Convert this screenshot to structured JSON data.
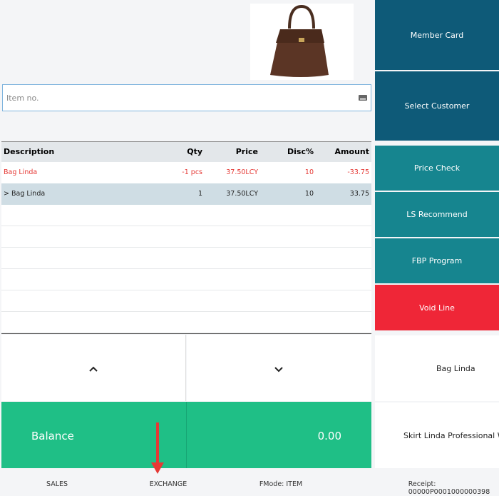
{
  "item_input": {
    "placeholder": "Item no."
  },
  "table": {
    "columns": [
      "Description",
      "Qty",
      "Price",
      "Disc%",
      "Amount"
    ],
    "rows": [
      [
        "Bag Linda",
        "-1 pcs",
        "37.50LCY",
        "10",
        "-33.75"
      ],
      [
        "> Bag Linda",
        "1",
        "37.50LCY",
        "10",
        "33.75"
      ]
    ]
  },
  "balance": {
    "label": "Balance",
    "value": "0.00"
  },
  "side_buttons": [
    "Member Card",
    "Select Customer",
    "Price Check",
    "LS Recommend",
    "FBP Program",
    "Void Line"
  ],
  "item_buttons": [
    "Bag Linda",
    "Skirt Linda Professional Wea"
  ],
  "status_bar": [
    "SALES",
    "EXCHANGE",
    "FMode: ITEM",
    "Receipt: 00000P0001000000398"
  ]
}
